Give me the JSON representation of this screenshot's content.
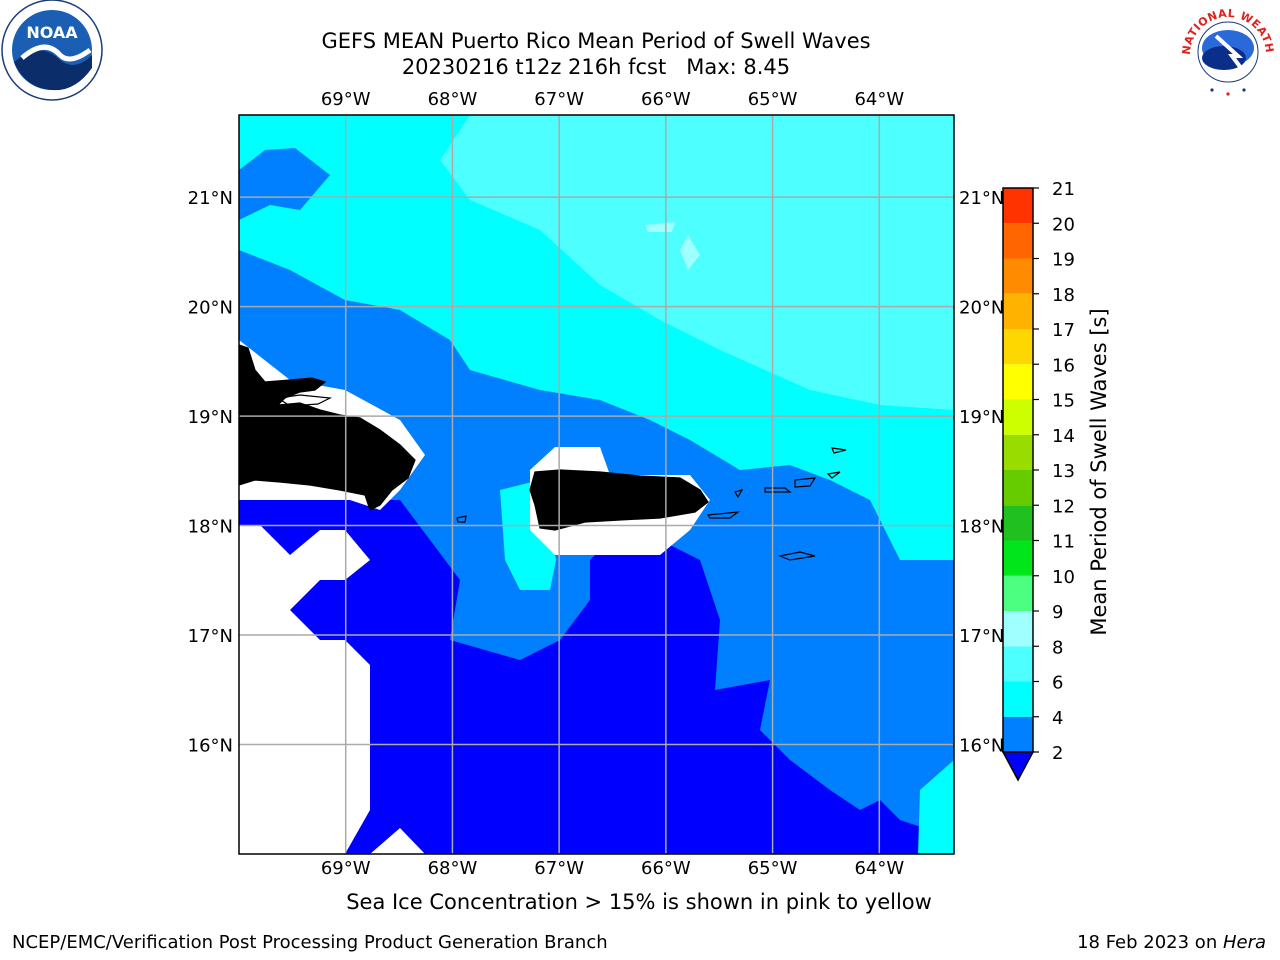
{
  "header": {
    "title_line1": "GEFS MEAN Puerto Rico Mean Period of Swell Waves",
    "title_line2": "20230216 t12z 216h fcst   Max: 8.45"
  },
  "map": {
    "lon_labels": [
      "69°W",
      "68°W",
      "67°W",
      "66°W",
      "65°W",
      "64°W"
    ],
    "lon_values": [
      -69,
      -68,
      -67,
      -66,
      -65,
      -64
    ],
    "lat_labels": [
      "16°N",
      "17°N",
      "18°N",
      "19°N",
      "20°N",
      "21°N"
    ],
    "lat_values": [
      16,
      17,
      18,
      19,
      20,
      21
    ],
    "extent": {
      "lon": [
        -70.0,
        -63.3
      ],
      "lat": [
        15.0,
        21.75
      ]
    },
    "land_color": "#eeeedc",
    "grid_color": "#aaaaaa"
  },
  "colorbar": {
    "label": "Mean Period of Swell Waves [s]",
    "tick_labels": [
      "2",
      "4",
      "6",
      "8",
      "9",
      "10",
      "11",
      "12",
      "13",
      "14",
      "15",
      "16",
      "17",
      "18",
      "19",
      "20",
      "21"
    ],
    "under_color": "#0000ff",
    "colors": [
      "#0080ff",
      "#00ffff",
      "#4dffff",
      "#a0ffff",
      "#4dff80",
      "#00e61a",
      "#20c020",
      "#66cc00",
      "#99dd00",
      "#ccff00",
      "#ffff00",
      "#ffd700",
      "#ffb300",
      "#ff8c00",
      "#ff6600",
      "#ff3300"
    ]
  },
  "note": "Sea Ice Concentration > 15% is shown in pink to yellow",
  "footer": {
    "left": "NCEP/EMC/Verification Post Processing Product Generation Branch",
    "right_date": "18 Feb 2023 on ",
    "right_host": "Hera"
  },
  "logos": {
    "noaa": "NOAA",
    "nws": "NATIONAL WEATHER SERVICE"
  }
}
